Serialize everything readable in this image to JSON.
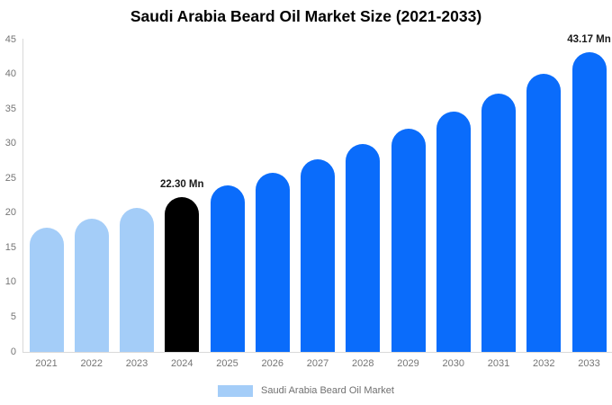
{
  "title": "Saudi Arabia Beard Oil Market Size (2021-2033)",
  "chart_data": {
    "type": "bar",
    "title": "Saudi Arabia Beard Oil Market Size (2021-2033)",
    "categories": [
      "2021",
      "2022",
      "2023",
      "2024",
      "2025",
      "2026",
      "2027",
      "2028",
      "2029",
      "2030",
      "2031",
      "2032",
      "2033"
    ],
    "values": [
      17.89,
      19.25,
      20.72,
      22.3,
      24.0,
      25.83,
      27.8,
      29.91,
      32.19,
      34.65,
      37.28,
      40.13,
      43.17
    ],
    "unit": "Mn",
    "bar_colors": [
      "#a4cdf8",
      "#a4cdf8",
      "#a4cdf8",
      "#000000",
      "#0a6cfb",
      "#0a6cfb",
      "#0a6cfb",
      "#0a6cfb",
      "#0a6cfb",
      "#0a6cfb",
      "#0a6cfb",
      "#0a6cfb",
      "#0a6cfb"
    ],
    "data_labels": [
      {
        "category": "2024",
        "text": "22.30 Mn"
      },
      {
        "category": "2033",
        "text": "43.17 Mn"
      }
    ],
    "yticks": [
      0,
      5,
      10,
      15,
      20,
      25,
      30,
      35,
      40,
      45
    ],
    "ylim": [
      0,
      45
    ],
    "grid": false,
    "legend_position": "bottom",
    "legend": [
      {
        "label": "Saudi Arabia Beard Oil Market",
        "color": "#a4cdf8"
      }
    ]
  },
  "colors": {
    "background": "#ffffff",
    "axis_line": "#d9d9d9",
    "tick_text": "#757575",
    "data_label_text": "#1a1a1a",
    "legend_text": "#707070",
    "title_text": "#000000"
  }
}
